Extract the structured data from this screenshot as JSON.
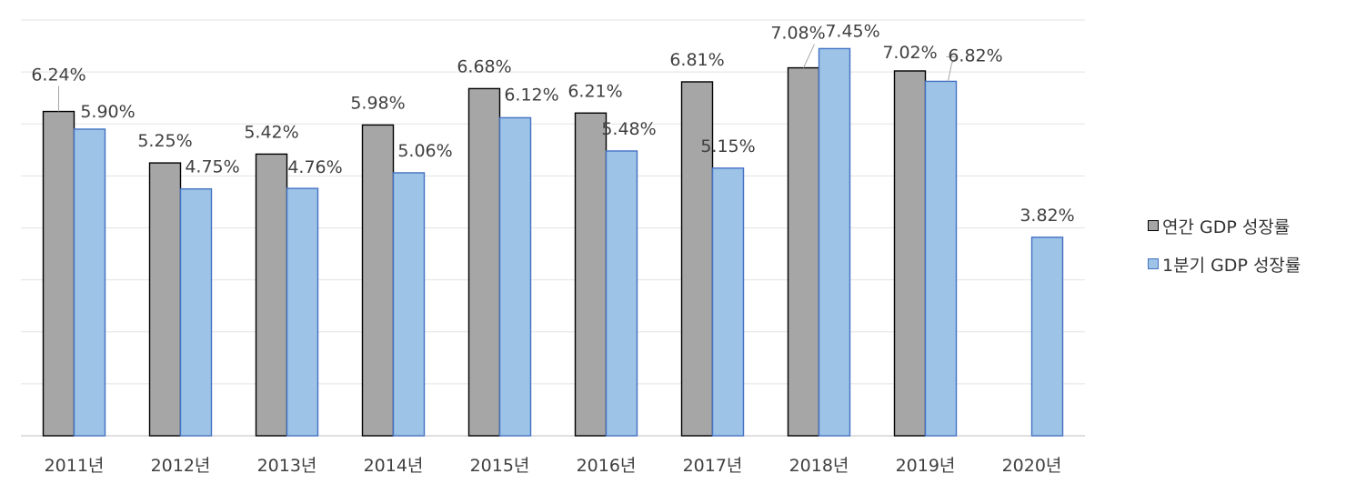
{
  "chart_data": {
    "type": "bar",
    "categories": [
      "2011년",
      "2012년",
      "2013년",
      "2014년",
      "2015년",
      "2016년",
      "2017년",
      "2018년",
      "2019년",
      "2020년"
    ],
    "series": [
      {
        "name": "연간 GDP 성장률",
        "values": [
          6.24,
          5.25,
          5.42,
          5.98,
          6.68,
          6.21,
          6.81,
          7.08,
          7.02,
          null
        ],
        "labels": [
          "6.24%",
          "5.25%",
          "5.42%",
          "5.98%",
          "6.68%",
          "6.21%",
          "6.81%",
          "7.08%",
          "7.02%",
          ""
        ],
        "color": "#a6a6a6",
        "stroke": "#000000"
      },
      {
        "name": "1분기 GDP 성장률",
        "values": [
          5.9,
          4.75,
          4.76,
          5.06,
          6.12,
          5.48,
          5.15,
          7.45,
          6.82,
          3.82
        ],
        "labels": [
          "5.90%",
          "4.75%",
          "4.76%",
          "5.06%",
          "6.12%",
          "5.48%",
          "5.15%",
          "7.45%",
          "6.82%",
          "3.82%"
        ],
        "color": "#9dc3e6",
        "stroke": "#4472c4"
      }
    ],
    "ylim": [
      0,
      8
    ],
    "grid": true,
    "legend_position": "right"
  }
}
